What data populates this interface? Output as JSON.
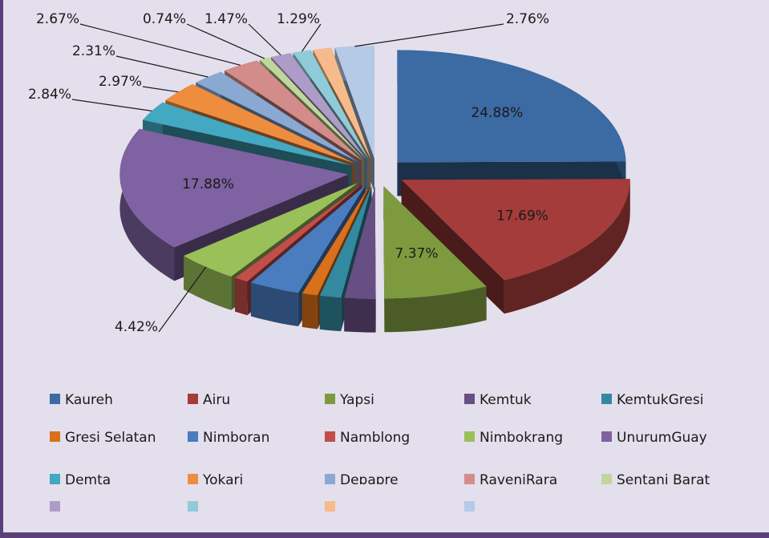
{
  "chart_data": {
    "type": "pie3d",
    "categories": [
      "Kaureh",
      "Airu",
      "Yapsi",
      "Kemtuk",
      "KemtukGresi",
      "Gresi Selatan",
      "Nimboran",
      "Namblong",
      "Nimbokrang",
      "UnurumGuay",
      "Demta",
      "Yokari",
      "Depapre",
      "RaveniRara",
      "Sentani Barat",
      null,
      null,
      null,
      null
    ],
    "values": [
      24.88,
      17.69,
      7.37,
      2.2,
      1.5,
      1.1,
      3.6,
      1.0,
      4.42,
      17.88,
      2.84,
      2.97,
      2.31,
      2.67,
      0.74,
      1.47,
      1.29,
      1.3,
      2.76
    ],
    "value_labels": [
      "24.88%",
      "17.69%",
      "7.37%",
      null,
      null,
      null,
      null,
      null,
      "4.42%",
      "17.88%",
      "2.84%",
      "2.97%",
      "2.31%",
      "2.67%",
      "0.74%",
      "1.47%",
      "1.29%",
      null,
      "2.76%"
    ],
    "colors": [
      "#3c6aa3",
      "#a33c3a",
      "#7d9a3f",
      "#674f84",
      "#33899f",
      "#d8701c",
      "#4a7cc0",
      "#c24d4a",
      "#9ac05a",
      "#7e62a1",
      "#43a8c2",
      "#ef8d3f",
      "#8aa9d2",
      "#d48c8a",
      "#c1d69b",
      "#ad9cc8",
      "#8fcbd9",
      "#f7bb8b",
      "#b5cae6"
    ]
  }
}
